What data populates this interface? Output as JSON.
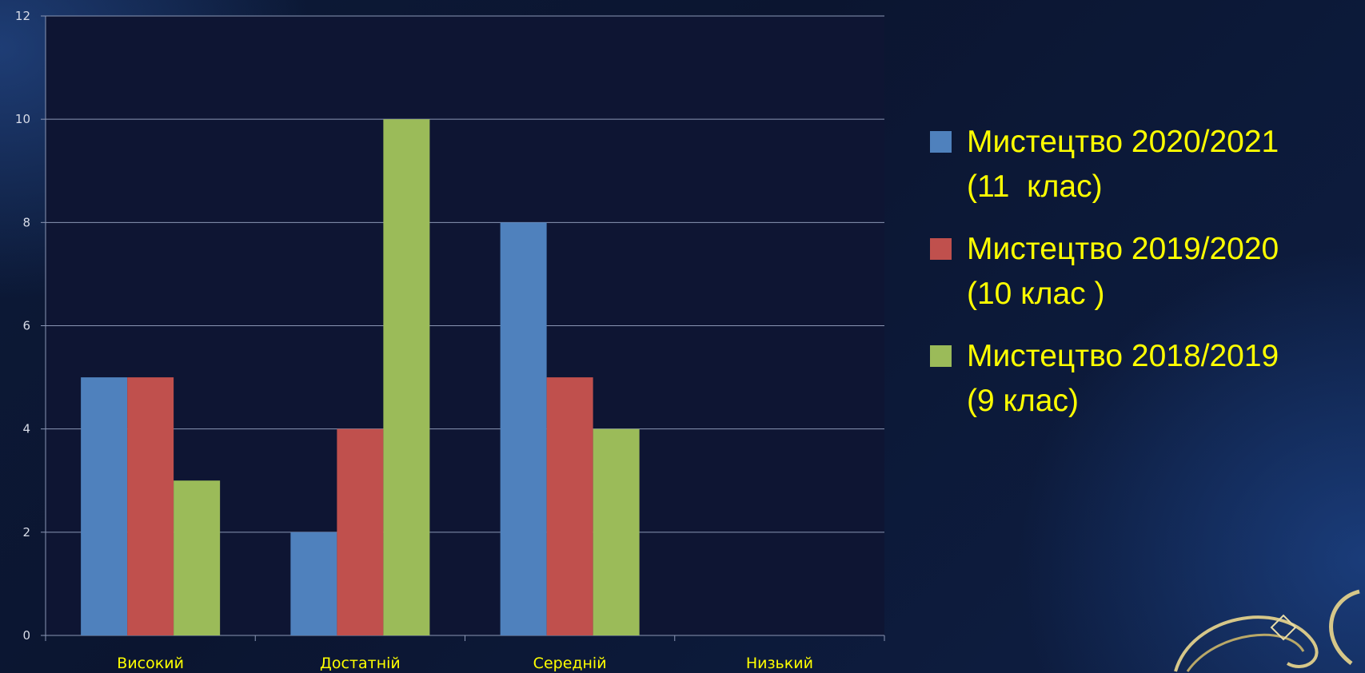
{
  "chart_data": {
    "type": "bar",
    "categories": [
      "Високий",
      "Достатній",
      "Середній",
      "Низький"
    ],
    "series": [
      {
        "name": "Мистецтво 2020/2021\n(11  клас)",
        "color": "#4f81bd",
        "values": [
          5,
          2,
          8,
          0
        ]
      },
      {
        "name": "Мистецтво 2019/2020\n(10 клас )",
        "color": "#c0504d",
        "values": [
          5,
          4,
          5,
          0
        ]
      },
      {
        "name": "Мистецтво 2018/2019\n(9 клас)",
        "color": "#9bbb59",
        "values": [
          3,
          10,
          4,
          0
        ]
      }
    ],
    "y_ticks": [
      "0",
      "2",
      "4",
      "6",
      "8",
      "10",
      "12"
    ],
    "ylim": [
      0,
      12
    ],
    "grid": true,
    "legend_position": "right",
    "colors": {
      "plot_background": "#0e1533",
      "grid": "#8a96b4",
      "axis_text": "#ffff00",
      "tick_text": "#d8dce8"
    }
  }
}
